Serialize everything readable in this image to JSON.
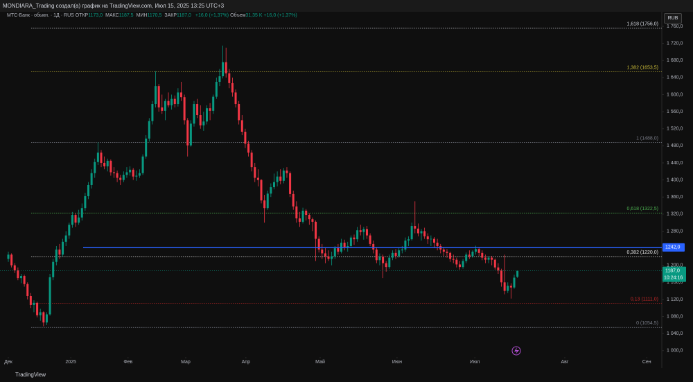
{
  "header": {
    "title": "MONDIARA_Trading создал(а) график на TradingView.com, Июл 15, 2025 13:25 UTC+3",
    "currency": "RUB",
    "logo": "TradingView"
  },
  "legend": {
    "symbol": "МТС-Банк · обыкн. · 1Д · RUS",
    "items": [
      {
        "label": "ОТКР",
        "value": "1173,0"
      },
      {
        "label": "МАКС",
        "value": "1187,5"
      },
      {
        "label": "МИН",
        "value": "1170,5"
      },
      {
        "label": "ЗАКР",
        "value": "1187,0"
      }
    ],
    "change": "+16,0 (+1,37%)",
    "volume_label": "Объем",
    "volume": "31,35 K",
    "volume_change": "+16,0 (+1,37%)"
  },
  "chart_data": {
    "type": "candlestick",
    "candles": [
      [
        1215,
        1232,
        1208,
        1225
      ],
      [
        1225,
        1228,
        1195,
        1200
      ],
      [
        1200,
        1205,
        1182,
        1188
      ],
      [
        1188,
        1195,
        1165,
        1170
      ],
      [
        1170,
        1180,
        1158,
        1175
      ],
      [
        1175,
        1178,
        1150,
        1156
      ],
      [
        1156,
        1160,
        1120,
        1128
      ],
      [
        1128,
        1135,
        1100,
        1107
      ],
      [
        1107,
        1118,
        1090,
        1112
      ],
      [
        1112,
        1115,
        1078,
        1083
      ],
      [
        1083,
        1098,
        1070,
        1090
      ],
      [
        1090,
        1092,
        1057,
        1066
      ],
      [
        1066,
        1090,
        1060,
        1085
      ],
      [
        1085,
        1180,
        1082,
        1172
      ],
      [
        1172,
        1215,
        1165,
        1208
      ],
      [
        1208,
        1245,
        1200,
        1237
      ],
      [
        1237,
        1250,
        1215,
        1225
      ],
      [
        1225,
        1262,
        1220,
        1255
      ],
      [
        1255,
        1280,
        1245,
        1270
      ],
      [
        1270,
        1300,
        1262,
        1295
      ],
      [
        1295,
        1325,
        1288,
        1318
      ],
      [
        1318,
        1322,
        1290,
        1300
      ],
      [
        1300,
        1330,
        1295,
        1312
      ],
      [
        1312,
        1345,
        1305,
        1334
      ],
      [
        1334,
        1370,
        1328,
        1362
      ],
      [
        1362,
        1395,
        1355,
        1388
      ],
      [
        1388,
        1425,
        1380,
        1416
      ],
      [
        1416,
        1450,
        1405,
        1442
      ],
      [
        1442,
        1488,
        1435,
        1464
      ],
      [
        1464,
        1470,
        1430,
        1440
      ],
      [
        1440,
        1455,
        1425,
        1432
      ],
      [
        1432,
        1450,
        1420,
        1445
      ],
      [
        1445,
        1448,
        1410,
        1418
      ],
      [
        1418,
        1430,
        1405,
        1416
      ],
      [
        1416,
        1422,
        1395,
        1405
      ],
      [
        1405,
        1412,
        1388,
        1400
      ],
      [
        1400,
        1420,
        1395,
        1412
      ],
      [
        1412,
        1430,
        1405,
        1418
      ],
      [
        1418,
        1432,
        1410,
        1424
      ],
      [
        1424,
        1428,
        1400,
        1408
      ],
      [
        1408,
        1422,
        1398,
        1410
      ],
      [
        1410,
        1425,
        1405,
        1416
      ],
      [
        1416,
        1460,
        1412,
        1455
      ],
      [
        1455,
        1505,
        1450,
        1497
      ],
      [
        1497,
        1545,
        1490,
        1538
      ],
      [
        1538,
        1585,
        1530,
        1578
      ],
      [
        1578,
        1655,
        1570,
        1620
      ],
      [
        1620,
        1625,
        1560,
        1570
      ],
      [
        1570,
        1600,
        1555,
        1562
      ],
      [
        1562,
        1590,
        1540,
        1585
      ],
      [
        1585,
        1605,
        1570,
        1575
      ],
      [
        1575,
        1600,
        1565,
        1590
      ],
      [
        1590,
        1598,
        1570,
        1578
      ],
      [
        1578,
        1615,
        1572,
        1605
      ],
      [
        1605,
        1630,
        1585,
        1594
      ],
      [
        1594,
        1600,
        1530,
        1540
      ],
      [
        1540,
        1545,
        1455,
        1481
      ],
      [
        1481,
        1540,
        1478,
        1532
      ],
      [
        1532,
        1585,
        1525,
        1578
      ],
      [
        1578,
        1590,
        1545,
        1552
      ],
      [
        1552,
        1575,
        1520,
        1528
      ],
      [
        1528,
        1560,
        1515,
        1537
      ],
      [
        1537,
        1575,
        1530,
        1568
      ],
      [
        1568,
        1580,
        1540,
        1562
      ],
      [
        1562,
        1600,
        1555,
        1595
      ],
      [
        1595,
        1640,
        1590,
        1630
      ],
      [
        1630,
        1660,
        1620,
        1643
      ],
      [
        1643,
        1715,
        1638,
        1676
      ],
      [
        1676,
        1710,
        1640,
        1650
      ],
      [
        1650,
        1660,
        1615,
        1627
      ],
      [
        1627,
        1640,
        1595,
        1605
      ],
      [
        1605,
        1612,
        1570,
        1578
      ],
      [
        1578,
        1585,
        1530,
        1540
      ],
      [
        1540,
        1552,
        1505,
        1513
      ],
      [
        1513,
        1520,
        1475,
        1485
      ],
      [
        1485,
        1492,
        1455,
        1464
      ],
      [
        1464,
        1470,
        1420,
        1430
      ],
      [
        1430,
        1440,
        1395,
        1405
      ],
      [
        1405,
        1425,
        1385,
        1400
      ],
      [
        1400,
        1402,
        1345,
        1352
      ],
      [
        1352,
        1365,
        1300,
        1334
      ],
      [
        1334,
        1375,
        1330,
        1368
      ],
      [
        1368,
        1392,
        1360,
        1383
      ],
      [
        1383,
        1415,
        1378,
        1395
      ],
      [
        1395,
        1420,
        1385,
        1408
      ],
      [
        1408,
        1425,
        1390,
        1398
      ],
      [
        1398,
        1428,
        1392,
        1422
      ],
      [
        1422,
        1430,
        1405,
        1416
      ],
      [
        1416,
        1420,
        1360,
        1367
      ],
      [
        1367,
        1375,
        1330,
        1338
      ],
      [
        1338,
        1350,
        1300,
        1310
      ],
      [
        1310,
        1325,
        1290,
        1302
      ],
      [
        1302,
        1335,
        1298,
        1328
      ],
      [
        1328,
        1332,
        1305,
        1318
      ],
      [
        1318,
        1322,
        1295,
        1308
      ],
      [
        1308,
        1312,
        1280,
        1302
      ],
      [
        1302,
        1305,
        1210,
        1262
      ],
      [
        1262,
        1268,
        1230,
        1237
      ],
      [
        1237,
        1250,
        1215,
        1228
      ],
      [
        1228,
        1240,
        1205,
        1221
      ],
      [
        1221,
        1235,
        1210,
        1215
      ],
      [
        1215,
        1232,
        1200,
        1221
      ],
      [
        1221,
        1245,
        1215,
        1240
      ],
      [
        1240,
        1250,
        1225,
        1232
      ],
      [
        1232,
        1262,
        1228,
        1253
      ],
      [
        1253,
        1260,
        1235,
        1242
      ],
      [
        1242,
        1255,
        1232,
        1245
      ],
      [
        1245,
        1270,
        1240,
        1265
      ],
      [
        1265,
        1272,
        1248,
        1261
      ],
      [
        1261,
        1290,
        1255,
        1282
      ],
      [
        1282,
        1295,
        1270,
        1278
      ],
      [
        1278,
        1290,
        1260,
        1285
      ],
      [
        1285,
        1292,
        1262,
        1270
      ],
      [
        1270,
        1275,
        1245,
        1250
      ],
      [
        1250,
        1258,
        1228,
        1237
      ],
      [
        1237,
        1242,
        1205,
        1212
      ],
      [
        1212,
        1228,
        1200,
        1220
      ],
      [
        1220,
        1225,
        1170,
        1205
      ],
      [
        1205,
        1210,
        1185,
        1196
      ],
      [
        1196,
        1225,
        1192,
        1218
      ],
      [
        1218,
        1235,
        1212,
        1229
      ],
      [
        1229,
        1238,
        1215,
        1222
      ],
      [
        1222,
        1240,
        1218,
        1235
      ],
      [
        1235,
        1245,
        1228,
        1237
      ],
      [
        1237,
        1265,
        1232,
        1258
      ],
      [
        1258,
        1268,
        1245,
        1261
      ],
      [
        1261,
        1300,
        1258,
        1292
      ],
      [
        1292,
        1350,
        1275,
        1286
      ],
      [
        1286,
        1298,
        1268,
        1275
      ],
      [
        1275,
        1285,
        1258,
        1280
      ],
      [
        1280,
        1288,
        1262,
        1268
      ],
      [
        1268,
        1275,
        1250,
        1261
      ],
      [
        1261,
        1270,
        1245,
        1262
      ],
      [
        1262,
        1266,
        1240,
        1253
      ],
      [
        1253,
        1262,
        1235,
        1245
      ],
      [
        1245,
        1250,
        1228,
        1237
      ],
      [
        1237,
        1242,
        1222,
        1232
      ],
      [
        1232,
        1238,
        1218,
        1229
      ],
      [
        1229,
        1232,
        1208,
        1215
      ],
      [
        1215,
        1225,
        1205,
        1213
      ],
      [
        1213,
        1218,
        1195,
        1202
      ],
      [
        1202,
        1210,
        1190,
        1196
      ],
      [
        1196,
        1215,
        1192,
        1210
      ],
      [
        1210,
        1230,
        1205,
        1225
      ],
      [
        1225,
        1235,
        1215,
        1221
      ],
      [
        1221,
        1235,
        1218,
        1232
      ],
      [
        1232,
        1246,
        1225,
        1238
      ],
      [
        1238,
        1242,
        1222,
        1229
      ],
      [
        1229,
        1235,
        1212,
        1218
      ],
      [
        1218,
        1225,
        1205,
        1213
      ],
      [
        1213,
        1222,
        1205,
        1218
      ],
      [
        1218,
        1222,
        1200,
        1213
      ],
      [
        1213,
        1216,
        1190,
        1195
      ],
      [
        1195,
        1205,
        1180,
        1188
      ],
      [
        1188,
        1192,
        1150,
        1160
      ],
      [
        1160,
        1225,
        1132,
        1140
      ],
      [
        1140,
        1160,
        1135,
        1152
      ],
      [
        1152,
        1158,
        1122,
        1148
      ],
      [
        1148,
        1178,
        1145,
        1171
      ],
      [
        1173,
        1187.5,
        1170.5,
        1187
      ]
    ],
    "colors": {
      "up": "#089981",
      "down": "#f23645"
    },
    "xlim": [
      -2.6,
      204.1
    ],
    "xticks": [
      {
        "value": 0,
        "label": "Дек"
      },
      {
        "value": 19.5,
        "label": "2025"
      },
      {
        "value": 37.4,
        "label": "Фев"
      },
      {
        "value": 55.4,
        "label": "Мар"
      },
      {
        "value": 74.2,
        "label": "Апр"
      },
      {
        "value": 97.4,
        "label": "Май"
      },
      {
        "value": 121.4,
        "label": "Июн"
      },
      {
        "value": 145.7,
        "label": "Июл"
      },
      {
        "value": 173.8,
        "label": "Авг"
      },
      {
        "value": 199.4,
        "label": "Сен"
      }
    ],
    "ylim": [
      985,
      1773
    ],
    "yticks": [
      {
        "value": 1000,
        "label": "1 000,0"
      },
      {
        "value": 1040,
        "label": "1 040,0"
      },
      {
        "value": 1080,
        "label": "1 080,0"
      },
      {
        "value": 1120,
        "label": "1 120,0"
      },
      {
        "value": 1160,
        "label": "1 160,0"
      },
      {
        "value": 1200,
        "label": "1 200,0"
      },
      {
        "value": 1240,
        "label": "1 240,0"
      },
      {
        "value": 1280,
        "label": "1 280,0"
      },
      {
        "value": 1320,
        "label": "1 320,0"
      },
      {
        "value": 1360,
        "label": "1 360,0"
      },
      {
        "value": 1400,
        "label": "1 400,0"
      },
      {
        "value": 1440,
        "label": "1 440,0"
      },
      {
        "value": 1480,
        "label": "1 480,0"
      },
      {
        "value": 1520,
        "label": "1 520,0"
      },
      {
        "value": 1560,
        "label": "1 560,0"
      },
      {
        "value": 1600,
        "label": "1 600,0"
      },
      {
        "value": 1640,
        "label": "1 640,0"
      },
      {
        "value": 1680,
        "label": "1 680,0"
      },
      {
        "value": 1720,
        "label": "1 720,0"
      },
      {
        "value": 1760,
        "label": "1 760,0"
      }
    ],
    "grid": false,
    "levels": [
      {
        "value": 1756,
        "label": "1,618 (1756,0)",
        "color": "#d1d4dc"
      },
      {
        "value": 1653.5,
        "label": "1,382 (1653,5)",
        "color": "#c8b937"
      },
      {
        "value": 1488,
        "label": "1 (1488,0)",
        "color": "#787b86"
      },
      {
        "value": 1322.5,
        "label": "0,618 (1322,5)",
        "color": "#4caf50"
      },
      {
        "value": 1220,
        "label": "0,382 (1220,0)",
        "color": "#e0e0e0"
      },
      {
        "value": 1111,
        "label": "0,13 (1111,0)",
        "color": "#c62828"
      },
      {
        "value": 1054.5,
        "label": "0 (1054,5)",
        "color": "#787b86"
      }
    ],
    "horizontal_line": {
      "value": 1242,
      "label": "1242,0",
      "color": "#2962ff"
    },
    "last_price": {
      "value": 1187,
      "label": "1187,0",
      "countdown": "10:24:16",
      "color": "#089981"
    }
  }
}
